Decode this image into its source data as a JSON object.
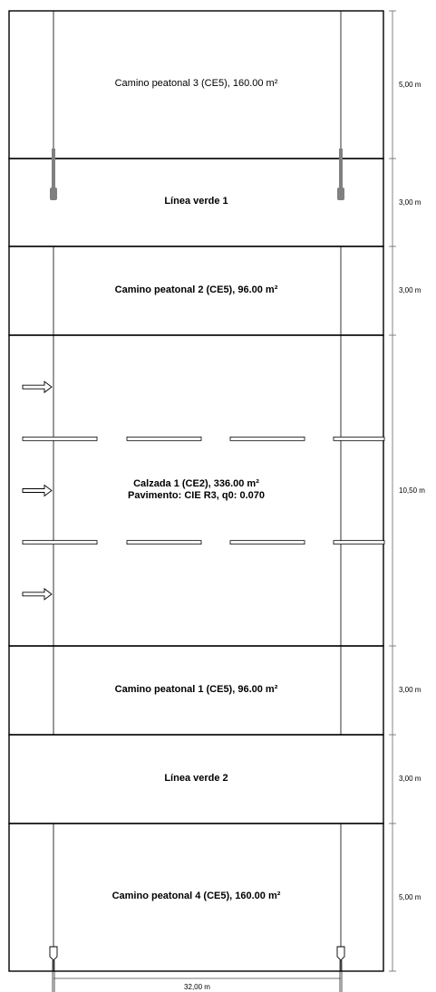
{
  "zones": [
    {
      "label": "Camino peatonal 3 (CE5), 160.00 m²",
      "detail": "",
      "bold": false,
      "height_m": "5,00 m",
      "has_inner_lines": true
    },
    {
      "label": "Línea verde 1",
      "detail": "",
      "bold": true,
      "height_m": "3,00 m",
      "has_inner_lines": false
    },
    {
      "label": "Camino peatonal 2 (CE5), 96.00 m²",
      "detail": "",
      "bold": true,
      "height_m": "3,00 m",
      "has_inner_lines": true
    },
    {
      "label": "Calzada 1 (CE2), 336.00 m²",
      "detail": "Pavimento: CIE R3, q0: 0.070",
      "bold": true,
      "height_m": "10,50 m",
      "has_inner_lines": true
    },
    {
      "label": "Camino peatonal 1 (CE5), 96.00 m²",
      "detail": "",
      "bold": true,
      "height_m": "3,00 m",
      "has_inner_lines": true
    },
    {
      "label": "Línea verde 2",
      "detail": "",
      "bold": true,
      "height_m": "3,00 m",
      "has_inner_lines": false
    },
    {
      "label": "Camino peatonal 4 (CE5), 160.00 m²",
      "detail": "",
      "bold": true,
      "height_m": "5,00 m",
      "has_inner_lines": true
    }
  ],
  "road": {
    "lanes": 3,
    "direction": "right"
  },
  "width_label": "32,00 m",
  "colors": {
    "line": "#000000",
    "luminaire": "#808080",
    "background": "#ffffff"
  }
}
